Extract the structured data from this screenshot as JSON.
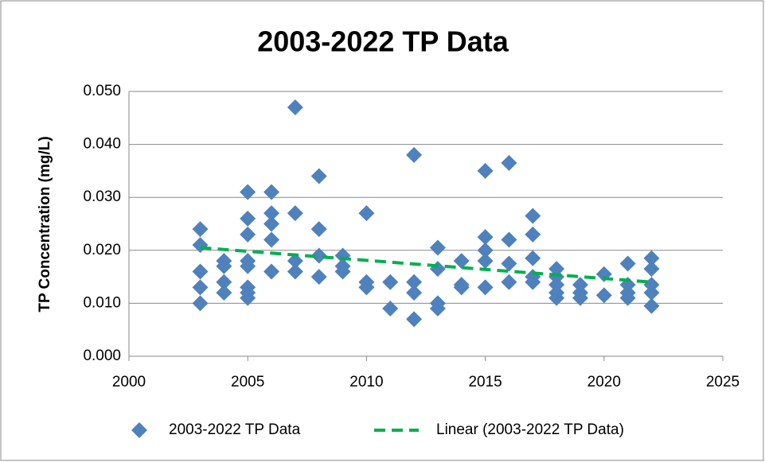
{
  "chart_data": {
    "type": "scatter",
    "title": "2003-2022 TP Data",
    "ylabel": "TP Concentration (mg/L)",
    "xlim": [
      2000,
      2025
    ],
    "xticks": [
      2000,
      2005,
      2010,
      2015,
      2020,
      2025
    ],
    "ylim": [
      0,
      0.05
    ],
    "yticks": [
      {
        "value": 0,
        "label": "0.000"
      },
      {
        "value": 0.01,
        "label": "0.010"
      },
      {
        "value": 0.02,
        "label": "0.020"
      },
      {
        "value": 0.03,
        "label": "0.030"
      },
      {
        "value": 0.04,
        "label": "0.040"
      },
      {
        "value": 0.05,
        "label": "0.050"
      }
    ],
    "grid": true,
    "series": [
      {
        "name": "2003-2022 TP Data",
        "color": "#4f81bd",
        "kind": "points",
        "x": [
          2003,
          2003,
          2003,
          2003,
          2003,
          2004,
          2004,
          2004,
          2004,
          2005,
          2005,
          2005,
          2005,
          2005,
          2005,
          2005,
          2005,
          2006,
          2006,
          2006,
          2006,
          2006,
          2007,
          2007,
          2007,
          2007,
          2008,
          2008,
          2008,
          2008,
          2009,
          2009,
          2009,
          2010,
          2010,
          2010,
          2011,
          2011,
          2012,
          2012,
          2012,
          2012,
          2013,
          2013,
          2013,
          2013,
          2014,
          2014,
          2014,
          2015,
          2015,
          2015,
          2015,
          2015,
          2016,
          2016,
          2016,
          2016,
          2017,
          2017,
          2017,
          2017,
          2017,
          2018,
          2018,
          2018,
          2018,
          2018,
          2019,
          2019,
          2019,
          2020,
          2020,
          2021,
          2021,
          2021,
          2021,
          2022,
          2022,
          2022,
          2022,
          2022
        ],
        "values": [
          0.024,
          0.021,
          0.016,
          0.013,
          0.01,
          0.018,
          0.017,
          0.014,
          0.012,
          0.031,
          0.026,
          0.023,
          0.018,
          0.017,
          0.013,
          0.012,
          0.011,
          0.031,
          0.027,
          0.025,
          0.022,
          0.016,
          0.047,
          0.027,
          0.018,
          0.016,
          0.034,
          0.024,
          0.019,
          0.015,
          0.019,
          0.017,
          0.016,
          0.027,
          0.014,
          0.013,
          0.014,
          0.009,
          0.038,
          0.014,
          0.012,
          0.007,
          0.0205,
          0.0165,
          0.01,
          0.009,
          0.018,
          0.0135,
          0.013,
          0.035,
          0.0225,
          0.02,
          0.018,
          0.013,
          0.0365,
          0.022,
          0.0175,
          0.014,
          0.0265,
          0.023,
          0.0185,
          0.015,
          0.014,
          0.0165,
          0.015,
          0.0135,
          0.012,
          0.011,
          0.0135,
          0.012,
          0.011,
          0.0155,
          0.0115,
          0.0175,
          0.0135,
          0.012,
          0.011,
          0.0185,
          0.0165,
          0.0135,
          0.012,
          0.0095
        ]
      },
      {
        "name": "Linear (2003-2022 TP Data)",
        "color": "#00b050",
        "kind": "trend",
        "x": [
          2003,
          2022
        ],
        "values": [
          0.0205,
          0.014
        ]
      }
    ]
  }
}
